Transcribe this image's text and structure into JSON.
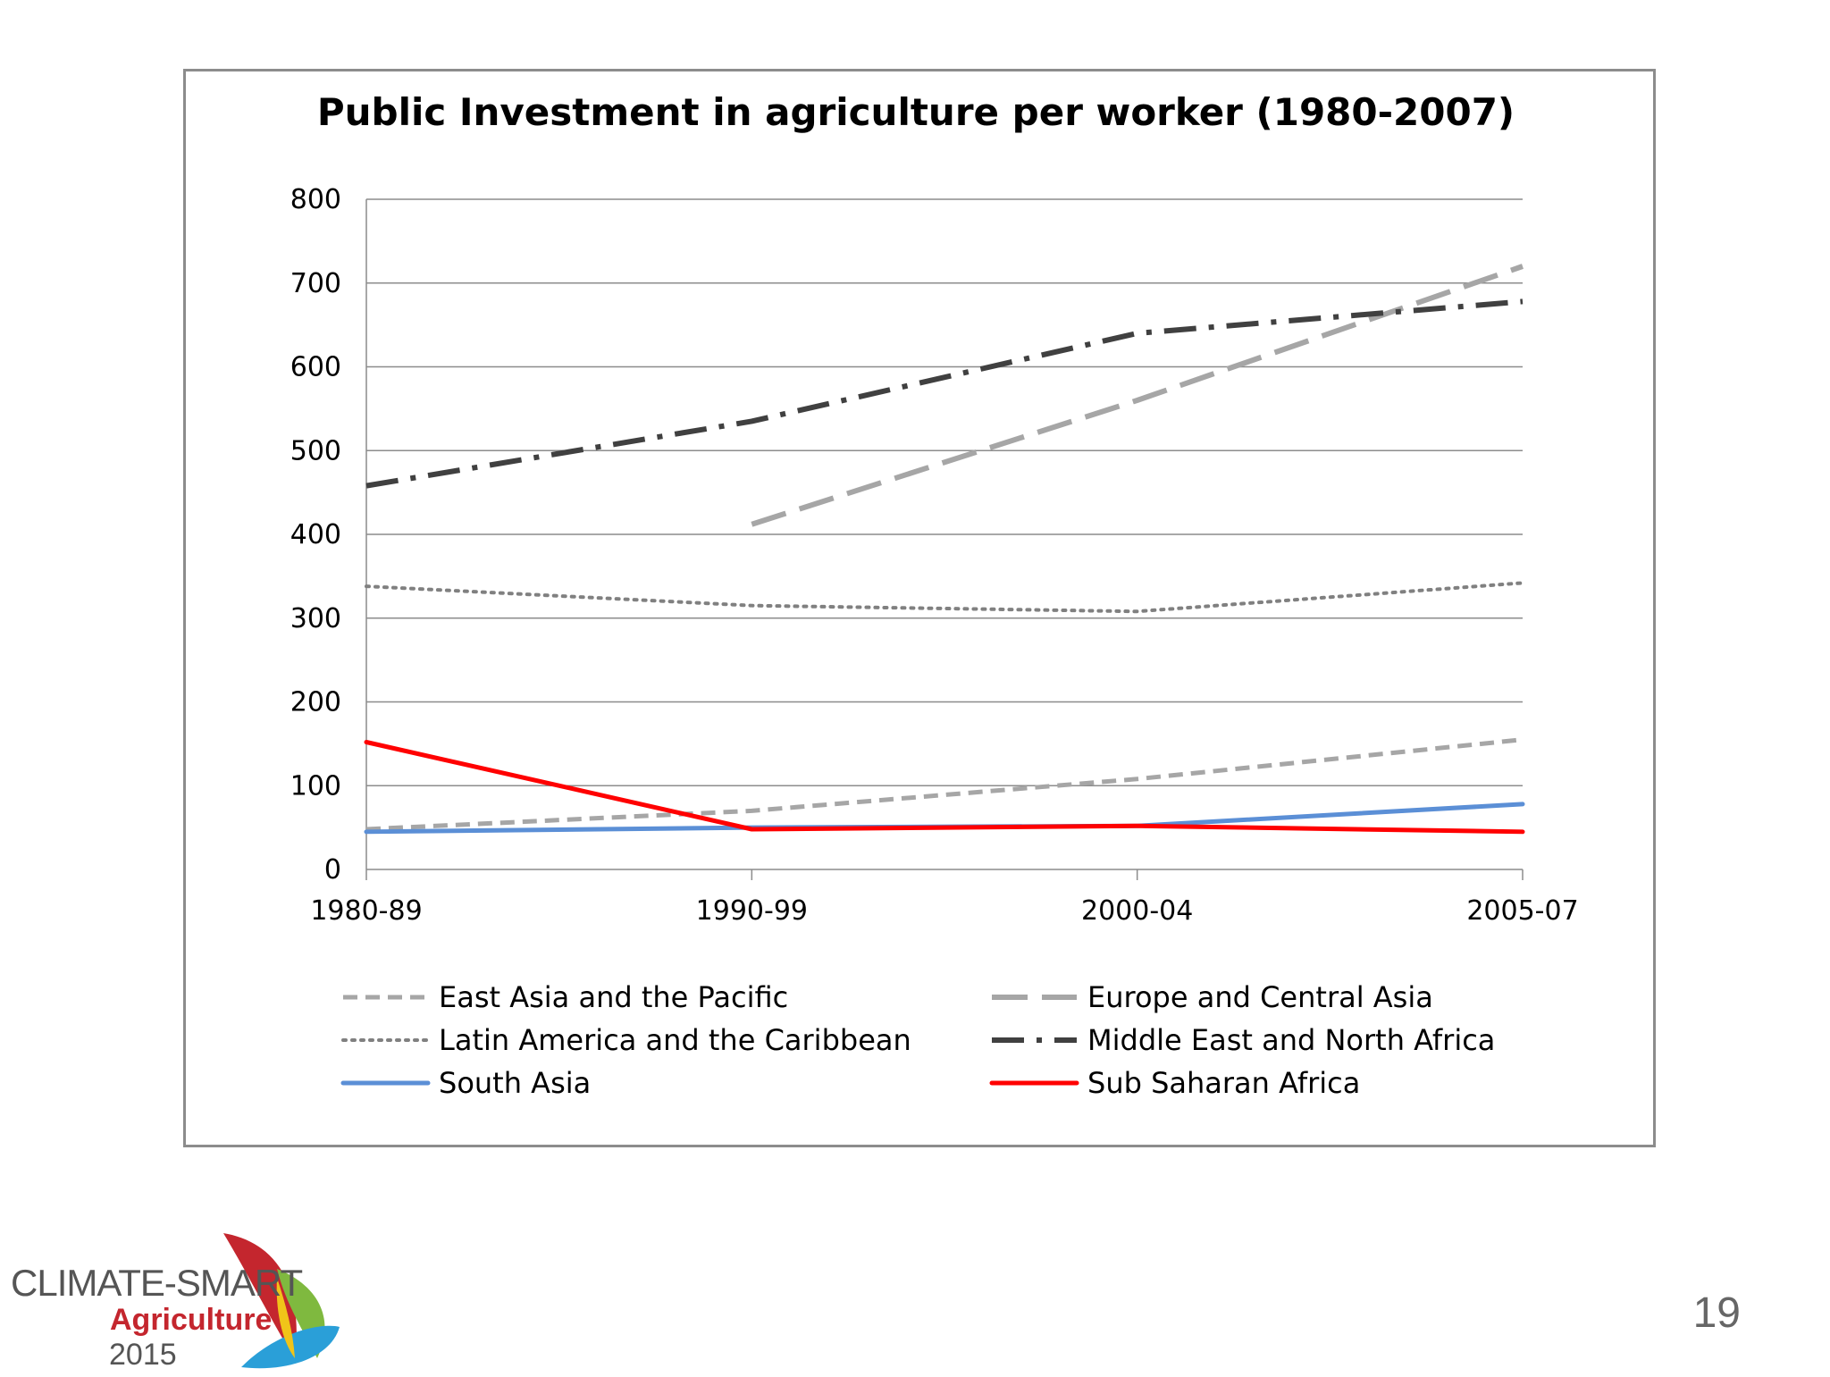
{
  "slide": {
    "number": "19"
  },
  "logo": {
    "line1": "CLIMATE-SMART",
    "line2": "Agriculture",
    "line3": "2015"
  },
  "chart_data": {
    "type": "line",
    "title": "Public Investment in agriculture per worker (1980-2007)",
    "xlabel": "",
    "ylabel": "",
    "categories": [
      "1980-89",
      "1990-99",
      "2000-04",
      "2005-07"
    ],
    "ylim": [
      0,
      800
    ],
    "yticks": [
      0,
      100,
      200,
      300,
      400,
      500,
      600,
      700,
      800
    ],
    "grid": true,
    "legend_position": "bottom",
    "series": [
      {
        "name": "East Asia and the Pacific",
        "values": [
          48,
          70,
          108,
          155
        ],
        "color": "#a6a6a6",
        "dash": "short-dash"
      },
      {
        "name": "Europe and Central Asia",
        "values": [
          null,
          412,
          560,
          720
        ],
        "color": "#a6a6a6",
        "dash": "long-dash"
      },
      {
        "name": "Latin America and the Caribbean",
        "values": [
          338,
          315,
          308,
          342
        ],
        "color": "#808080",
        "dash": "dot"
      },
      {
        "name": "Middle East and North Africa",
        "values": [
          458,
          535,
          640,
          678
        ],
        "color": "#404040",
        "dash": "long-dash-dot"
      },
      {
        "name": "South Asia",
        "values": [
          45,
          50,
          52,
          78
        ],
        "color": "#5b8fd6",
        "dash": "solid"
      },
      {
        "name": "Sub Saharan Africa",
        "values": [
          152,
          48,
          52,
          45
        ],
        "color": "#ff0000",
        "dash": "solid"
      }
    ]
  }
}
